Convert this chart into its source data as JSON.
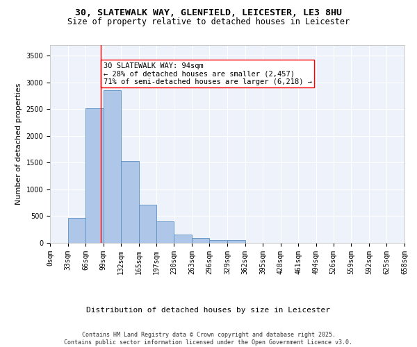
{
  "title_line1": "30, SLATEWALK WAY, GLENFIELD, LEICESTER, LE3 8HU",
  "title_line2": "Size of property relative to detached houses in Leicester",
  "xlabel": "Distribution of detached houses by size in Leicester",
  "ylabel": "Number of detached properties",
  "bar_values": [
    0,
    470,
    2520,
    2850,
    1530,
    720,
    400,
    155,
    90,
    50,
    50,
    0,
    0,
    0,
    0,
    0,
    0,
    0,
    0,
    0
  ],
  "bin_labels": [
    "0sqm",
    "33sqm",
    "66sqm",
    "99sqm",
    "132sqm",
    "165sqm",
    "197sqm",
    "230sqm",
    "263sqm",
    "296sqm",
    "329sqm",
    "362sqm",
    "395sqm",
    "428sqm",
    "461sqm",
    "494sqm",
    "526sqm",
    "559sqm",
    "592sqm",
    "625sqm",
    "658sqm"
  ],
  "bin_edges": [
    0,
    33,
    66,
    99,
    132,
    165,
    197,
    230,
    263,
    296,
    329,
    362,
    395,
    428,
    461,
    494,
    526,
    559,
    592,
    625,
    658
  ],
  "bar_color": "#aec6e8",
  "bar_edge_color": "#5a8fc2",
  "vline_x": 94,
  "vline_color": "red",
  "annotation_text": "30 SLATEWALK WAY: 94sqm\n← 28% of detached houses are smaller (2,457)\n71% of semi-detached houses are larger (6,218) →",
  "ylim": [
    0,
    3700
  ],
  "yticks": [
    0,
    500,
    1000,
    1500,
    2000,
    2500,
    3000,
    3500
  ],
  "background_color": "#eef2fb",
  "footer_text": "Contains HM Land Registry data © Crown copyright and database right 2025.\nContains public sector information licensed under the Open Government Licence v3.0.",
  "grid_color": "#ffffff",
  "title_fontsize": 9.5,
  "subtitle_fontsize": 8.5,
  "axis_label_fontsize": 8,
  "tick_fontsize": 7,
  "annotation_fontsize": 7.5
}
